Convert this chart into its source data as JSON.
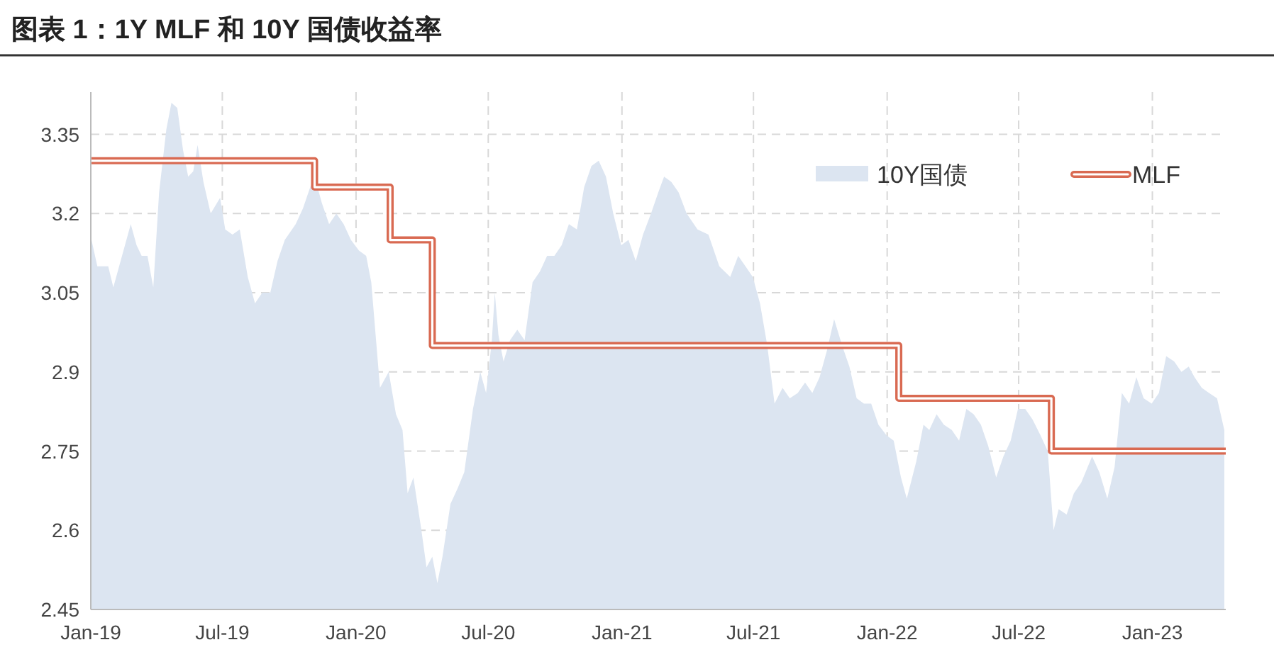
{
  "chart_data": {
    "type": "area",
    "title": "图表 1：1Y MLF 和 10Y 国债收益率",
    "xlim": [
      "2019-01-01",
      "2023-04-12"
    ],
    "xticks": [
      {
        "value": "2019-01",
        "label": "Jan-19"
      },
      {
        "value": "2019-07",
        "label": "Jul-19"
      },
      {
        "value": "2020-01",
        "label": "Jan-20"
      },
      {
        "value": "2020-07",
        "label": "Jul-20"
      },
      {
        "value": "2021-01",
        "label": "Jan-21"
      },
      {
        "value": "2021-07",
        "label": "Jul-21"
      },
      {
        "value": "2022-01",
        "label": "Jan-22"
      },
      {
        "value": "2022-07",
        "label": "Jul-22"
      },
      {
        "value": "2023-01",
        "label": "Jan-23"
      }
    ],
    "ylim": [
      2.45,
      3.43
    ],
    "yticks": [
      2.45,
      2.6,
      2.75,
      2.9,
      3.05,
      3.2,
      3.35
    ],
    "grid": true,
    "legend": "top right",
    "series": [
      {
        "name": "10Y国债",
        "color": "#dce5f1",
        "x": [
          "2019-01-02",
          "2019-01-10",
          "2019-01-25",
          "2019-02-01",
          "2019-02-15",
          "2019-02-25",
          "2019-03-05",
          "2019-03-12",
          "2019-03-20",
          "2019-03-28",
          "2019-04-05",
          "2019-04-15",
          "2019-04-22",
          "2019-04-30",
          "2019-05-08",
          "2019-05-15",
          "2019-05-22",
          "2019-05-28",
          "2019-06-05",
          "2019-06-15",
          "2019-06-28",
          "2019-07-05",
          "2019-07-15",
          "2019-07-25",
          "2019-08-05",
          "2019-08-15",
          "2019-08-25",
          "2019-09-05",
          "2019-09-15",
          "2019-09-25",
          "2019-10-10",
          "2019-10-20",
          "2019-10-30",
          "2019-11-05",
          "2019-11-15",
          "2019-11-25",
          "2019-12-05",
          "2019-12-15",
          "2019-12-25",
          "2020-01-05",
          "2020-01-15",
          "2020-01-22",
          "2020-02-03",
          "2020-02-15",
          "2020-02-25",
          "2020-03-05",
          "2020-03-12",
          "2020-03-20",
          "2020-03-31",
          "2020-04-07",
          "2020-04-15",
          "2020-04-22",
          "2020-04-29",
          "2020-05-10",
          "2020-05-20",
          "2020-05-29",
          "2020-06-10",
          "2020-06-20",
          "2020-06-28",
          "2020-07-06",
          "2020-07-10",
          "2020-07-15",
          "2020-07-22",
          "2020-07-31",
          "2020-08-10",
          "2020-08-20",
          "2020-08-31",
          "2020-09-10",
          "2020-09-20",
          "2020-09-30",
          "2020-10-10",
          "2020-10-20",
          "2020-10-31",
          "2020-11-10",
          "2020-11-20",
          "2020-11-30",
          "2020-12-10",
          "2020-12-20",
          "2020-12-31",
          "2021-01-10",
          "2021-01-20",
          "2021-01-30",
          "2021-02-10",
          "2021-02-20",
          "2021-02-28",
          "2021-03-10",
          "2021-03-20",
          "2021-03-31",
          "2021-04-15",
          "2021-04-30",
          "2021-05-15",
          "2021-05-30",
          "2021-06-10",
          "2021-06-20",
          "2021-06-30",
          "2021-07-10",
          "2021-07-20",
          "2021-07-30",
          "2021-08-10",
          "2021-08-20",
          "2021-08-31",
          "2021-09-10",
          "2021-09-20",
          "2021-09-30",
          "2021-10-10",
          "2021-10-20",
          "2021-10-31",
          "2021-11-10",
          "2021-11-20",
          "2021-11-30",
          "2021-12-10",
          "2021-12-20",
          "2021-12-31",
          "2022-01-10",
          "2022-01-20",
          "2022-01-28",
          "2022-02-10",
          "2022-02-20",
          "2022-02-28",
          "2022-03-10",
          "2022-03-20",
          "2022-03-31",
          "2022-04-10",
          "2022-04-20",
          "2022-04-30",
          "2022-05-10",
          "2022-05-20",
          "2022-05-31",
          "2022-06-10",
          "2022-06-20",
          "2022-06-30",
          "2022-07-10",
          "2022-07-20",
          "2022-07-31",
          "2022-08-10",
          "2022-08-18",
          "2022-08-25",
          "2022-09-05",
          "2022-09-15",
          "2022-09-25",
          "2022-10-10",
          "2022-10-20",
          "2022-10-31",
          "2022-11-10",
          "2022-11-20",
          "2022-11-30",
          "2022-12-10",
          "2022-12-20",
          "2022-12-31",
          "2023-01-10",
          "2023-01-20",
          "2023-01-31",
          "2023-02-10",
          "2023-02-20",
          "2023-02-28",
          "2023-03-10",
          "2023-03-20",
          "2023-03-31",
          "2023-04-10"
        ],
        "values": [
          3.15,
          3.1,
          3.1,
          3.06,
          3.13,
          3.18,
          3.14,
          3.12,
          3.12,
          3.06,
          3.24,
          3.36,
          3.41,
          3.4,
          3.32,
          3.27,
          3.28,
          3.33,
          3.26,
          3.2,
          3.23,
          3.17,
          3.16,
          3.17,
          3.08,
          3.03,
          3.05,
          3.05,
          3.11,
          3.15,
          3.18,
          3.21,
          3.25,
          3.27,
          3.22,
          3.18,
          3.2,
          3.18,
          3.15,
          3.13,
          3.12,
          3.07,
          2.87,
          2.9,
          2.82,
          2.79,
          2.67,
          2.7,
          2.6,
          2.53,
          2.55,
          2.5,
          2.55,
          2.65,
          2.68,
          2.71,
          2.83,
          2.9,
          2.86,
          2.96,
          3.05,
          2.97,
          2.92,
          2.96,
          2.98,
          2.96,
          3.07,
          3.09,
          3.12,
          3.12,
          3.14,
          3.18,
          3.17,
          3.25,
          3.29,
          3.3,
          3.27,
          3.2,
          3.14,
          3.15,
          3.11,
          3.16,
          3.2,
          3.24,
          3.27,
          3.26,
          3.24,
          3.2,
          3.17,
          3.16,
          3.1,
          3.08,
          3.12,
          3.1,
          3.08,
          3.03,
          2.95,
          2.84,
          2.87,
          2.85,
          2.86,
          2.88,
          2.86,
          2.89,
          2.94,
          3.0,
          2.95,
          2.91,
          2.85,
          2.84,
          2.84,
          2.8,
          2.78,
          2.77,
          2.7,
          2.66,
          2.73,
          2.8,
          2.79,
          2.82,
          2.8,
          2.79,
          2.77,
          2.83,
          2.82,
          2.8,
          2.76,
          2.7,
          2.74,
          2.77,
          2.83,
          2.83,
          2.81,
          2.78,
          2.75,
          2.6,
          2.64,
          2.63,
          2.67,
          2.69,
          2.74,
          2.71,
          2.66,
          2.72,
          2.86,
          2.84,
          2.89,
          2.85,
          2.84,
          2.86,
          2.93,
          2.92,
          2.9,
          2.91,
          2.89,
          2.87,
          2.86,
          2.85,
          2.79
        ]
      },
      {
        "name": "MLF",
        "type": "step",
        "color": "#d96a52",
        "x": [
          "2019-01-01",
          "2019-11-05",
          "2020-02-17",
          "2020-04-15",
          "2022-01-17",
          "2022-08-15",
          "2023-04-12"
        ],
        "values": [
          3.3,
          3.25,
          3.15,
          2.95,
          2.85,
          2.75,
          2.75
        ]
      }
    ]
  }
}
